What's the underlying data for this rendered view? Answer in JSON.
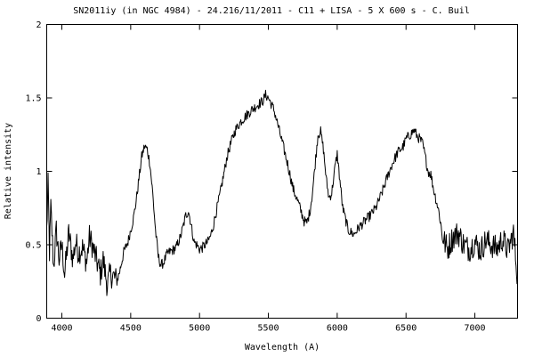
{
  "chart_data": {
    "type": "line",
    "title": "SN2011iy (in NGC 4984) - 24.216/11/2011 - C11 + LISA - 5 X 600 s  -  C. Buil",
    "xlabel": "Wavelength (A)",
    "ylabel": "Relative intensity",
    "xlim": [
      3890,
      7310
    ],
    "ylim": [
      0,
      2
    ],
    "xticks": [
      4000,
      4500,
      5000,
      5500,
      6000,
      6500,
      7000
    ],
    "yticks": [
      0,
      0.5,
      1,
      1.5,
      2
    ],
    "ytick_labels": [
      "0",
      "0.5",
      "1",
      "1.5",
      "2"
    ],
    "grid": false,
    "legend": "none",
    "line_color": "#000000",
    "series": [
      {
        "x": [
          3890,
          3900,
          3910,
          3920,
          3940,
          3960,
          3980,
          4000,
          4020,
          4050,
          4080,
          4100,
          4120,
          4150,
          4180,
          4200,
          4220,
          4250,
          4280,
          4300,
          4330,
          4350,
          4380,
          4400,
          4420,
          4450,
          4480,
          4500,
          4520,
          4540,
          4560,
          4580,
          4600,
          4620,
          4640,
          4660,
          4680,
          4700,
          4720,
          4740,
          4760,
          4780,
          4800,
          4830,
          4860,
          4880,
          4900,
          4920,
          4940,
          4960,
          4980,
          5000,
          5020,
          5040,
          5060,
          5080,
          5100,
          5120,
          5150,
          5180,
          5200,
          5230,
          5260,
          5300,
          5340,
          5380,
          5420,
          5460,
          5480,
          5500,
          5520,
          5540,
          5560,
          5600,
          5640,
          5680,
          5720,
          5760,
          5780,
          5800,
          5820,
          5840,
          5860,
          5880,
          5900,
          5920,
          5940,
          5960,
          5980,
          6000,
          6040,
          6080,
          6120,
          6160,
          6200,
          6240,
          6280,
          6320,
          6360,
          6400,
          6440,
          6480,
          6500,
          6520,
          6540,
          6560,
          6580,
          6600,
          6620,
          6640,
          6660,
          6680,
          6700,
          6720,
          6740,
          6760,
          6780,
          6800,
          6840,
          6880,
          6920,
          6960,
          7000,
          7040,
          7080,
          7120,
          7160,
          7200,
          7240,
          7280,
          7310
        ],
        "y": [
          0.6,
          0.9,
          0.45,
          0.75,
          0.35,
          0.6,
          0.4,
          0.5,
          0.3,
          0.58,
          0.4,
          0.52,
          0.45,
          0.48,
          0.38,
          0.55,
          0.5,
          0.4,
          0.3,
          0.4,
          0.22,
          0.3,
          0.28,
          0.25,
          0.32,
          0.45,
          0.52,
          0.6,
          0.68,
          0.8,
          0.95,
          1.1,
          1.17,
          1.15,
          1.05,
          0.85,
          0.6,
          0.42,
          0.36,
          0.38,
          0.43,
          0.45,
          0.46,
          0.48,
          0.55,
          0.62,
          0.7,
          0.73,
          0.63,
          0.52,
          0.5,
          0.47,
          0.48,
          0.5,
          0.52,
          0.56,
          0.63,
          0.72,
          0.85,
          1.0,
          1.1,
          1.2,
          1.28,
          1.34,
          1.38,
          1.42,
          1.45,
          1.48,
          1.52,
          1.5,
          1.46,
          1.42,
          1.35,
          1.2,
          1.05,
          0.88,
          0.78,
          0.66,
          0.65,
          0.72,
          0.85,
          1.05,
          1.25,
          1.27,
          1.15,
          0.95,
          0.82,
          0.85,
          1.0,
          1.12,
          0.75,
          0.6,
          0.57,
          0.62,
          0.66,
          0.7,
          0.75,
          0.84,
          0.95,
          1.05,
          1.13,
          1.17,
          1.22,
          1.24,
          1.26,
          1.28,
          1.24,
          1.22,
          1.19,
          1.1,
          1.0,
          0.98,
          0.88,
          0.8,
          0.72,
          0.58,
          0.52,
          0.47,
          0.55,
          0.58,
          0.5,
          0.47,
          0.52,
          0.46,
          0.53,
          0.5,
          0.47,
          0.54,
          0.46,
          0.58,
          0.28
        ]
      }
    ]
  }
}
